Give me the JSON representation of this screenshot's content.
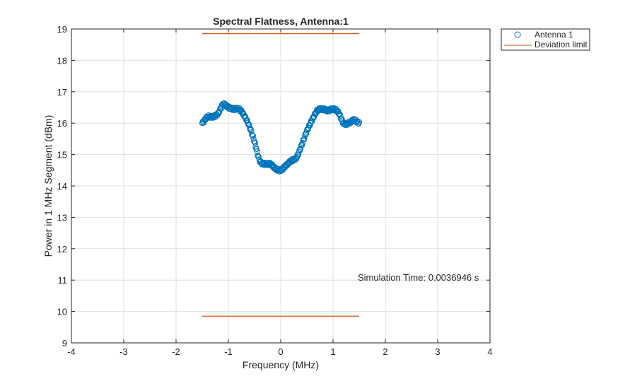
{
  "chart_data": {
    "type": "scatter",
    "title": "Spectral Flatness, Antenna:1",
    "xlabel": "Frequency (MHz)",
    "ylabel": "Power in 1 MHz Segment (dBm)",
    "xlim": [
      -4,
      4
    ],
    "ylim": [
      9,
      19
    ],
    "xticks": [
      "-4",
      "-3",
      "-2",
      "-1",
      "0",
      "1",
      "2",
      "3",
      "4"
    ],
    "yticks": [
      "9",
      "10",
      "11",
      "12",
      "13",
      "14",
      "15",
      "16",
      "17",
      "18",
      "19"
    ],
    "grid": true,
    "legend_position": "outside-top-right",
    "annotation": "Simulation Time: 0.0036946 s",
    "series": [
      {
        "name": "Antenna 1",
        "marker": "circle",
        "color": "#0072BD",
        "x": [
          -1.5,
          -1.4,
          -1.3,
          -1.2,
          -1.1,
          -1.0,
          -0.9,
          -0.8,
          -0.7,
          -0.6,
          -0.5,
          -0.4,
          -0.3,
          -0.2,
          -0.1,
          0.0,
          0.1,
          0.2,
          0.3,
          0.4,
          0.5,
          0.6,
          0.7,
          0.8,
          0.9,
          1.0,
          1.1,
          1.2,
          1.3,
          1.4,
          1.5
        ],
        "y": [
          16.0,
          16.2,
          16.2,
          16.3,
          16.6,
          16.5,
          16.45,
          16.45,
          16.25,
          15.9,
          15.4,
          14.8,
          14.7,
          14.7,
          14.55,
          14.5,
          14.65,
          14.8,
          14.9,
          15.3,
          15.75,
          16.1,
          16.4,
          16.45,
          16.4,
          16.45,
          16.35,
          16.0,
          16.0,
          16.1,
          16.0
        ]
      },
      {
        "name": "Deviation limit",
        "type": "line",
        "color": "#D95319",
        "segments": [
          {
            "x": [
              -1.5,
              1.5
            ],
            "y": [
              18.85,
              18.85
            ]
          },
          {
            "x": [
              -1.5,
              1.5
            ],
            "y": [
              9.85,
              9.85
            ]
          }
        ]
      }
    ]
  }
}
